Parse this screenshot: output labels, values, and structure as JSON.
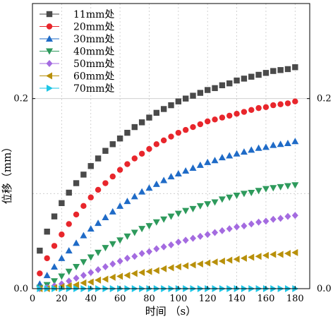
{
  "chart_data": {
    "type": "scatter",
    "xlabel": "时间 （s）",
    "ylabel": "位移（mm）",
    "xlim": [
      0,
      190
    ],
    "ylim": [
      0,
      0.3
    ],
    "x_ticks": [
      0,
      20,
      40,
      60,
      80,
      100,
      120,
      140,
      160,
      180
    ],
    "y_ticks_left": [
      "0.0",
      "0.2"
    ],
    "y_ticks_right": [
      "0.0",
      "0.2"
    ],
    "y_tick_values": [
      0.0,
      0.2
    ],
    "grid": "dotted",
    "legend_position": "top-left",
    "x": [
      5,
      10,
      15,
      20,
      25,
      30,
      35,
      40,
      45,
      50,
      55,
      60,
      65,
      70,
      75,
      80,
      85,
      90,
      95,
      100,
      105,
      110,
      115,
      120,
      125,
      130,
      135,
      140,
      145,
      150,
      155,
      160,
      165,
      170,
      175,
      180
    ],
    "series": [
      {
        "name": "11mm处",
        "color": "#4a4a4a",
        "marker": "square",
        "values": [
          0.04,
          0.06,
          0.076,
          0.09,
          0.101,
          0.111,
          0.12,
          0.129,
          0.137,
          0.145,
          0.152,
          0.158,
          0.164,
          0.17,
          0.175,
          0.18,
          0.185,
          0.189,
          0.193,
          0.197,
          0.2,
          0.203,
          0.206,
          0.209,
          0.211,
          0.214,
          0.216,
          0.219,
          0.221,
          0.223,
          0.225,
          0.227,
          0.229,
          0.23,
          0.231,
          0.233
        ]
      },
      {
        "name": "20mm处",
        "color": "#e8262c",
        "marker": "circle",
        "values": [
          0.016,
          0.032,
          0.045,
          0.057,
          0.068,
          0.078,
          0.087,
          0.096,
          0.104,
          0.111,
          0.118,
          0.125,
          0.131,
          0.137,
          0.142,
          0.147,
          0.152,
          0.156,
          0.16,
          0.164,
          0.167,
          0.17,
          0.173,
          0.176,
          0.178,
          0.18,
          0.182,
          0.184,
          0.186,
          0.188,
          0.19,
          0.191,
          0.193,
          0.194,
          0.195,
          0.197
        ]
      },
      {
        "name": "30mm处",
        "color": "#1f6bc7",
        "marker": "triangle-up",
        "values": [
          0.005,
          0.014,
          0.023,
          0.032,
          0.04,
          0.048,
          0.056,
          0.063,
          0.069,
          0.075,
          0.081,
          0.087,
          0.092,
          0.097,
          0.102,
          0.106,
          0.11,
          0.114,
          0.118,
          0.121,
          0.124,
          0.127,
          0.13,
          0.133,
          0.135,
          0.138,
          0.14,
          0.142,
          0.144,
          0.146,
          0.148,
          0.149,
          0.151,
          0.152,
          0.153,
          0.155
        ]
      },
      {
        "name": "40mm处",
        "color": "#2e9a5c",
        "marker": "triangle-down",
        "values": [
          0.001,
          0.004,
          0.008,
          0.013,
          0.018,
          0.023,
          0.028,
          0.033,
          0.038,
          0.043,
          0.047,
          0.051,
          0.055,
          0.059,
          0.063,
          0.066,
          0.07,
          0.073,
          0.076,
          0.079,
          0.082,
          0.084,
          0.087,
          0.089,
          0.091,
          0.094,
          0.096,
          0.098,
          0.1,
          0.101,
          0.103,
          0.105,
          0.106,
          0.107,
          0.108,
          0.109
        ]
      },
      {
        "name": "50mm处",
        "color": "#a46be0",
        "marker": "diamond",
        "values": [
          0.0,
          0.001,
          0.003,
          0.005,
          0.008,
          0.011,
          0.014,
          0.017,
          0.02,
          0.023,
          0.026,
          0.029,
          0.032,
          0.034,
          0.037,
          0.039,
          0.042,
          0.044,
          0.046,
          0.049,
          0.051,
          0.053,
          0.055,
          0.057,
          0.059,
          0.061,
          0.063,
          0.065,
          0.066,
          0.068,
          0.07,
          0.071,
          0.073,
          0.074,
          0.076,
          0.077
        ]
      },
      {
        "name": "60mm处",
        "color": "#b8900a",
        "marker": "triangle-left",
        "values": [
          0.0,
          0.0,
          0.001,
          0.002,
          0.003,
          0.004,
          0.006,
          0.007,
          0.009,
          0.01,
          0.012,
          0.013,
          0.014,
          0.016,
          0.017,
          0.018,
          0.019,
          0.021,
          0.022,
          0.023,
          0.024,
          0.025,
          0.026,
          0.027,
          0.028,
          0.029,
          0.03,
          0.031,
          0.032,
          0.033,
          0.034,
          0.035,
          0.036,
          0.036,
          0.037,
          0.038
        ]
      },
      {
        "name": "70mm处",
        "color": "#1ec6e6",
        "marker": "triangle-right",
        "values": [
          0.0,
          0.0,
          0.0,
          0.0,
          0.0,
          0.0,
          0.0,
          0.0,
          0.0,
          0.0,
          0.0,
          0.0,
          0.0,
          0.0,
          0.0,
          0.0,
          0.0,
          0.0,
          0.0,
          0.0,
          0.0,
          0.0,
          0.0,
          0.0,
          0.0,
          0.0,
          0.0,
          0.0,
          0.0,
          0.0,
          0.0,
          0.0,
          0.0,
          0.0,
          0.0,
          0.0
        ]
      }
    ]
  }
}
